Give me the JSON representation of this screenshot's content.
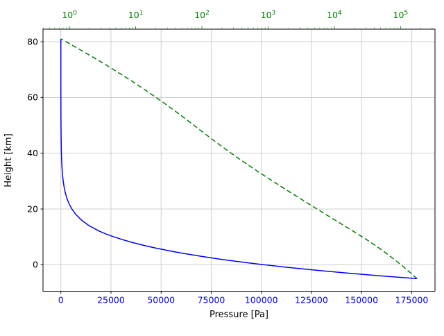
{
  "chart_data": {
    "type": "line",
    "title": "",
    "xlabel": "Pressure [Pa]",
    "ylabel": "Height [km]",
    "axes": {
      "x_bottom": {
        "label": "Pressure [Pa]",
        "scale": "linear",
        "ticks": [
          0,
          25000,
          50000,
          75000,
          100000,
          125000,
          150000,
          175000
        ],
        "lim": [
          -8900,
          186600
        ],
        "tick_label_color": "#0000ff"
      },
      "x_top": {
        "scale": "log",
        "tick_exponents": [
          0,
          1,
          2,
          3,
          4,
          5
        ],
        "lim_log10": [
          -0.4,
          5.52
        ],
        "tick_label_color": "#008000"
      },
      "y": {
        "label": "Height [km]",
        "ticks": [
          0,
          20,
          40,
          60,
          80
        ],
        "lim": [
          -9.5,
          84.5
        ],
        "tick_label_color": "#000000"
      }
    },
    "grid": {
      "show": true,
      "color": "#c9c9c9"
    },
    "height_km": [
      -5,
      -4,
      -3,
      -2,
      -1,
      0,
      1,
      2,
      3,
      4,
      5,
      6,
      7,
      8,
      9,
      10,
      11,
      12,
      14,
      16,
      18,
      20,
      22,
      24,
      26,
      28,
      30,
      32,
      34,
      36,
      38,
      40,
      42,
      44,
      46,
      47,
      48,
      50,
      51,
      52,
      54,
      56,
      58,
      60,
      62,
      64,
      66,
      68,
      70,
      71,
      72,
      74,
      76,
      78,
      80,
      81
    ],
    "pressure_pa": [
      177700,
      159550,
      142960,
      127770,
      113930,
      101325,
      89880,
      79500,
      70110,
      61640,
      54020,
      47180,
      41060,
      35600,
      30740,
      26440,
      22632,
      19330,
      14100,
      10290,
      7505,
      5475,
      4000,
      2930,
      2153,
      1586,
      1172,
      868,
      646,
      484,
      365,
      278,
      212,
      163,
      126,
      111,
      97.8,
      76,
      66.9,
      59,
      45.6,
      35,
      26.8,
      20.3,
      15.3,
      11.5,
      8.55,
      6.31,
      4.61,
      3.96,
      3.37,
      2.44,
      1.75,
      1.25,
      0.886,
      0.744
    ],
    "series": [
      {
        "name": "pressure-vs-height-linear",
        "x_axis": "bottom",
        "color": "#0000ff",
        "linestyle": "solid",
        "linewidth": 1.5
      },
      {
        "name": "pressure-vs-height-log",
        "x_axis": "top",
        "color": "#008000",
        "linestyle": "dashed",
        "linewidth": 1.5
      }
    ],
    "legend": {
      "show": false
    }
  }
}
